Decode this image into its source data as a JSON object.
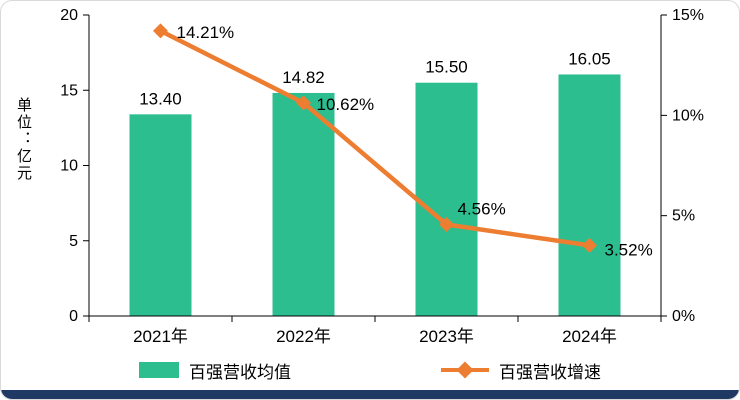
{
  "page": {
    "background": "#ffffff",
    "border_color": "#d9d9d9",
    "bottom_bar_color": "#1f3864"
  },
  "chart_data": {
    "type": "combo-bar-line",
    "title": "",
    "categories": [
      "2021年",
      "2022年",
      "2023年",
      "2024年"
    ],
    "series": [
      {
        "name": "百强营收均值",
        "type": "bar",
        "axis": "left",
        "color": "#2cbe8f",
        "values": [
          13.4,
          14.82,
          15.5,
          16.05
        ],
        "labels": [
          "13.40",
          "14.82",
          "15.50",
          "16.05"
        ]
      },
      {
        "name": "百强营收增速",
        "type": "line",
        "axis": "right",
        "color": "#ed7d31",
        "values": [
          14.21,
          10.62,
          4.56,
          3.52
        ],
        "labels": [
          "14.21%",
          "10.62%",
          "4.56%",
          "3.52%"
        ]
      }
    ],
    "left_axis": {
      "title": "单位：亿元",
      "min": 0,
      "max": 20,
      "tick_values": [
        0,
        5,
        10,
        15,
        20
      ],
      "tick_labels": [
        "0",
        "5",
        "10",
        "15",
        "20"
      ]
    },
    "right_axis": {
      "min": 0,
      "max": 15,
      "tick_values": [
        0,
        5,
        10,
        15
      ],
      "tick_labels": [
        "0%",
        "5%",
        "10%",
        "15%"
      ]
    },
    "grid": false,
    "legend_position": "bottom"
  }
}
